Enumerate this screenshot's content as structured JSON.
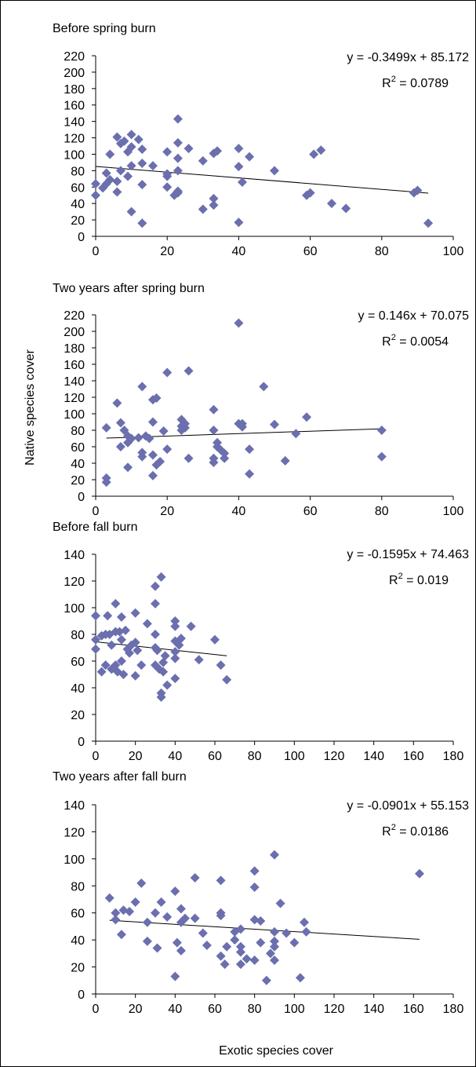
{
  "figure": {
    "ylabel": "Native species cover",
    "xlabel": "Exotic species cover"
  },
  "chart_data": [
    {
      "type": "scatter",
      "title": "Before spring burn",
      "xlim": [
        0,
        100
      ],
      "ylim": [
        0,
        220
      ],
      "xticks": [
        0,
        20,
        40,
        60,
        80,
        100
      ],
      "yticks": [
        0,
        20,
        40,
        60,
        80,
        100,
        120,
        140,
        160,
        180,
        200,
        220
      ],
      "marker_color": "#6b6fae",
      "grid": false,
      "legend": "none",
      "equation": "y = -0.3499x + 85.172",
      "r2_label": "R",
      "r2_sup": "2",
      "r2_value": " = 0.0789",
      "trendline": {
        "slope": -0.3499,
        "intercept": 85.172,
        "x_range": [
          0,
          93
        ]
      },
      "points": [
        [
          0,
          64
        ],
        [
          0,
          50
        ],
        [
          2,
          59
        ],
        [
          3,
          77
        ],
        [
          3,
          64
        ],
        [
          4,
          69
        ],
        [
          4,
          100
        ],
        [
          6,
          54
        ],
        [
          6,
          67
        ],
        [
          6,
          121
        ],
        [
          7,
          80
        ],
        [
          7,
          113
        ],
        [
          8,
          116
        ],
        [
          9,
          103
        ],
        [
          9,
          73
        ],
        [
          10,
          109
        ],
        [
          10,
          124
        ],
        [
          10,
          30
        ],
        [
          10,
          86
        ],
        [
          12,
          118
        ],
        [
          13,
          106
        ],
        [
          13,
          89
        ],
        [
          13,
          63
        ],
        [
          13,
          16
        ],
        [
          16,
          86
        ],
        [
          20,
          103
        ],
        [
          20,
          76
        ],
        [
          20,
          73
        ],
        [
          20,
          60
        ],
        [
          22,
          50
        ],
        [
          23,
          143
        ],
        [
          23,
          114
        ],
        [
          23,
          95
        ],
        [
          23,
          80
        ],
        [
          23,
          53
        ],
        [
          23,
          55
        ],
        [
          26,
          107
        ],
        [
          30,
          92
        ],
        [
          30,
          33
        ],
        [
          33,
          101
        ],
        [
          33,
          46
        ],
        [
          33,
          38
        ],
        [
          34,
          104
        ],
        [
          40,
          107
        ],
        [
          40,
          85
        ],
        [
          41,
          66
        ],
        [
          40,
          17
        ],
        [
          43,
          97
        ],
        [
          50,
          80
        ],
        [
          59,
          50
        ],
        [
          60,
          53
        ],
        [
          61,
          100
        ],
        [
          63,
          105
        ],
        [
          66,
          40
        ],
        [
          70,
          34
        ],
        [
          89,
          53
        ],
        [
          90,
          56
        ],
        [
          93,
          16
        ]
      ]
    },
    {
      "type": "scatter",
      "title": "Two years after spring burn",
      "xlim": [
        0,
        100
      ],
      "ylim": [
        0,
        220
      ],
      "xticks": [
        0,
        20,
        40,
        60,
        80,
        100
      ],
      "yticks": [
        0,
        20,
        40,
        60,
        80,
        100,
        120,
        140,
        160,
        180,
        200,
        220
      ],
      "marker_color": "#6b6fae",
      "grid": false,
      "legend": "none",
      "equation": "y = 0.146x + 70.075",
      "r2_label": "R",
      "r2_sup": "2",
      "r2_value": " = 0.0054",
      "trendline": {
        "slope": 0.146,
        "intercept": 70.075,
        "x_range": [
          3,
          80
        ]
      },
      "points": [
        [
          3,
          83
        ],
        [
          3,
          22
        ],
        [
          3,
          17
        ],
        [
          6,
          113
        ],
        [
          7,
          89
        ],
        [
          7,
          60
        ],
        [
          8,
          80
        ],
        [
          9,
          73
        ],
        [
          9,
          65
        ],
        [
          9,
          35
        ],
        [
          10,
          70
        ],
        [
          12,
          71
        ],
        [
          13,
          133
        ],
        [
          13,
          53
        ],
        [
          13,
          48
        ],
        [
          14,
          73
        ],
        [
          15,
          70
        ],
        [
          16,
          90
        ],
        [
          16,
          117
        ],
        [
          17,
          119
        ],
        [
          16,
          50
        ],
        [
          16,
          25
        ],
        [
          17,
          38
        ],
        [
          18,
          42
        ],
        [
          19,
          79
        ],
        [
          20,
          150
        ],
        [
          20,
          57
        ],
        [
          24,
          93
        ],
        [
          24,
          85
        ],
        [
          24,
          80
        ],
        [
          25,
          88
        ],
        [
          25,
          83
        ],
        [
          26,
          152
        ],
        [
          26,
          46
        ],
        [
          33,
          105
        ],
        [
          33,
          80
        ],
        [
          33,
          46
        ],
        [
          33,
          41
        ],
        [
          34,
          65
        ],
        [
          34,
          60
        ],
        [
          35,
          56
        ],
        [
          36,
          52
        ],
        [
          36,
          46
        ],
        [
          40,
          210
        ],
        [
          40,
          88
        ],
        [
          41,
          88
        ],
        [
          41,
          84
        ],
        [
          43,
          57
        ],
        [
          43,
          27
        ],
        [
          47,
          133
        ],
        [
          50,
          87
        ],
        [
          53,
          43
        ],
        [
          56,
          76
        ],
        [
          59,
          96
        ],
        [
          80,
          80
        ],
        [
          80,
          48
        ]
      ]
    },
    {
      "type": "scatter",
      "title": "Before fall burn",
      "xlim": [
        0,
        180
      ],
      "ylim": [
        0,
        140
      ],
      "xticks": [
        0,
        20,
        40,
        60,
        80,
        100,
        120,
        140,
        160,
        180
      ],
      "yticks": [
        0,
        20,
        40,
        60,
        80,
        100,
        120,
        140
      ],
      "marker_color": "#6b6fae",
      "grid": false,
      "legend": "none",
      "equation": "y = -0.1595x + 74.463",
      "r2_label": "R",
      "r2_sup": "2",
      "r2_value": " = 0.019",
      "trendline": {
        "slope": -0.1595,
        "intercept": 74.463,
        "x_range": [
          0,
          66
        ]
      },
      "points": [
        [
          0,
          94
        ],
        [
          0,
          76
        ],
        [
          0,
          69
        ],
        [
          3,
          79
        ],
        [
          3,
          52
        ],
        [
          5,
          80
        ],
        [
          5,
          57
        ],
        [
          6,
          94
        ],
        [
          7,
          80
        ],
        [
          8,
          54
        ],
        [
          8,
          72
        ],
        [
          10,
          103
        ],
        [
          10,
          82
        ],
        [
          10,
          57
        ],
        [
          11,
          52
        ],
        [
          12,
          82
        ],
        [
          13,
          93
        ],
        [
          13,
          76
        ],
        [
          13,
          60
        ],
        [
          14,
          50
        ],
        [
          15,
          83
        ],
        [
          16,
          69
        ],
        [
          17,
          66
        ],
        [
          18,
          72
        ],
        [
          20,
          96
        ],
        [
          20,
          74
        ],
        [
          20,
          49
        ],
        [
          21,
          68
        ],
        [
          23,
          57
        ],
        [
          26,
          88
        ],
        [
          30,
          116
        ],
        [
          30,
          103
        ],
        [
          30,
          80
        ],
        [
          30,
          70
        ],
        [
          30,
          57
        ],
        [
          31,
          68
        ],
        [
          32,
          54
        ],
        [
          33,
          36
        ],
        [
          33,
          33
        ],
        [
          33,
          123
        ],
        [
          34,
          59
        ],
        [
          34,
          52
        ],
        [
          35,
          64
        ],
        [
          36,
          42
        ],
        [
          40,
          90
        ],
        [
          40,
          86
        ],
        [
          40,
          75
        ],
        [
          40,
          67
        ],
        [
          40,
          62
        ],
        [
          40,
          47
        ],
        [
          42,
          72
        ],
        [
          43,
          77
        ],
        [
          48,
          86
        ],
        [
          52,
          61
        ],
        [
          60,
          76
        ],
        [
          63,
          57
        ],
        [
          66,
          46
        ]
      ]
    },
    {
      "type": "scatter",
      "title": "Two years after fall burn",
      "xlim": [
        0,
        180
      ],
      "ylim": [
        0,
        140
      ],
      "xticks": [
        0,
        20,
        40,
        60,
        80,
        100,
        120,
        140,
        160,
        180
      ],
      "yticks": [
        0,
        20,
        40,
        60,
        80,
        100,
        120,
        140
      ],
      "marker_color": "#6b6fae",
      "grid": false,
      "legend": "none",
      "equation": "y = -0.0901x + 55.153",
      "r2_label": "R",
      "r2_sup": "2",
      "r2_value": " = 0.0186",
      "trendline": {
        "slope": -0.0901,
        "intercept": 55.153,
        "x_range": [
          7,
          163
        ]
      },
      "points": [
        [
          7,
          71
        ],
        [
          10,
          60
        ],
        [
          10,
          55
        ],
        [
          13,
          44
        ],
        [
          14,
          62
        ],
        [
          17,
          61
        ],
        [
          20,
          68
        ],
        [
          23,
          82
        ],
        [
          26,
          53
        ],
        [
          26,
          39
        ],
        [
          30,
          60
        ],
        [
          31,
          34
        ],
        [
          33,
          68
        ],
        [
          36,
          57
        ],
        [
          40,
          76
        ],
        [
          40,
          13
        ],
        [
          41,
          38
        ],
        [
          43,
          63
        ],
        [
          43,
          53
        ],
        [
          43,
          32
        ],
        [
          45,
          56
        ],
        [
          50,
          86
        ],
        [
          50,
          56
        ],
        [
          54,
          45
        ],
        [
          56,
          36
        ],
        [
          63,
          84
        ],
        [
          63,
          60
        ],
        [
          63,
          58
        ],
        [
          63,
          28
        ],
        [
          65,
          22
        ],
        [
          66,
          35
        ],
        [
          70,
          46
        ],
        [
          70,
          40
        ],
        [
          73,
          48
        ],
        [
          73,
          35
        ],
        [
          73,
          31
        ],
        [
          73,
          22
        ],
        [
          76,
          26
        ],
        [
          80,
          91
        ],
        [
          80,
          79
        ],
        [
          80,
          55
        ],
        [
          80,
          25
        ],
        [
          83,
          54
        ],
        [
          83,
          38
        ],
        [
          86,
          10
        ],
        [
          88,
          30
        ],
        [
          90,
          103
        ],
        [
          90,
          46
        ],
        [
          90,
          39
        ],
        [
          90,
          35
        ],
        [
          90,
          25
        ],
        [
          93,
          67
        ],
        [
          96,
          45
        ],
        [
          100,
          38
        ],
        [
          103,
          12
        ],
        [
          105,
          53
        ],
        [
          106,
          46
        ],
        [
          163,
          89
        ]
      ]
    }
  ]
}
